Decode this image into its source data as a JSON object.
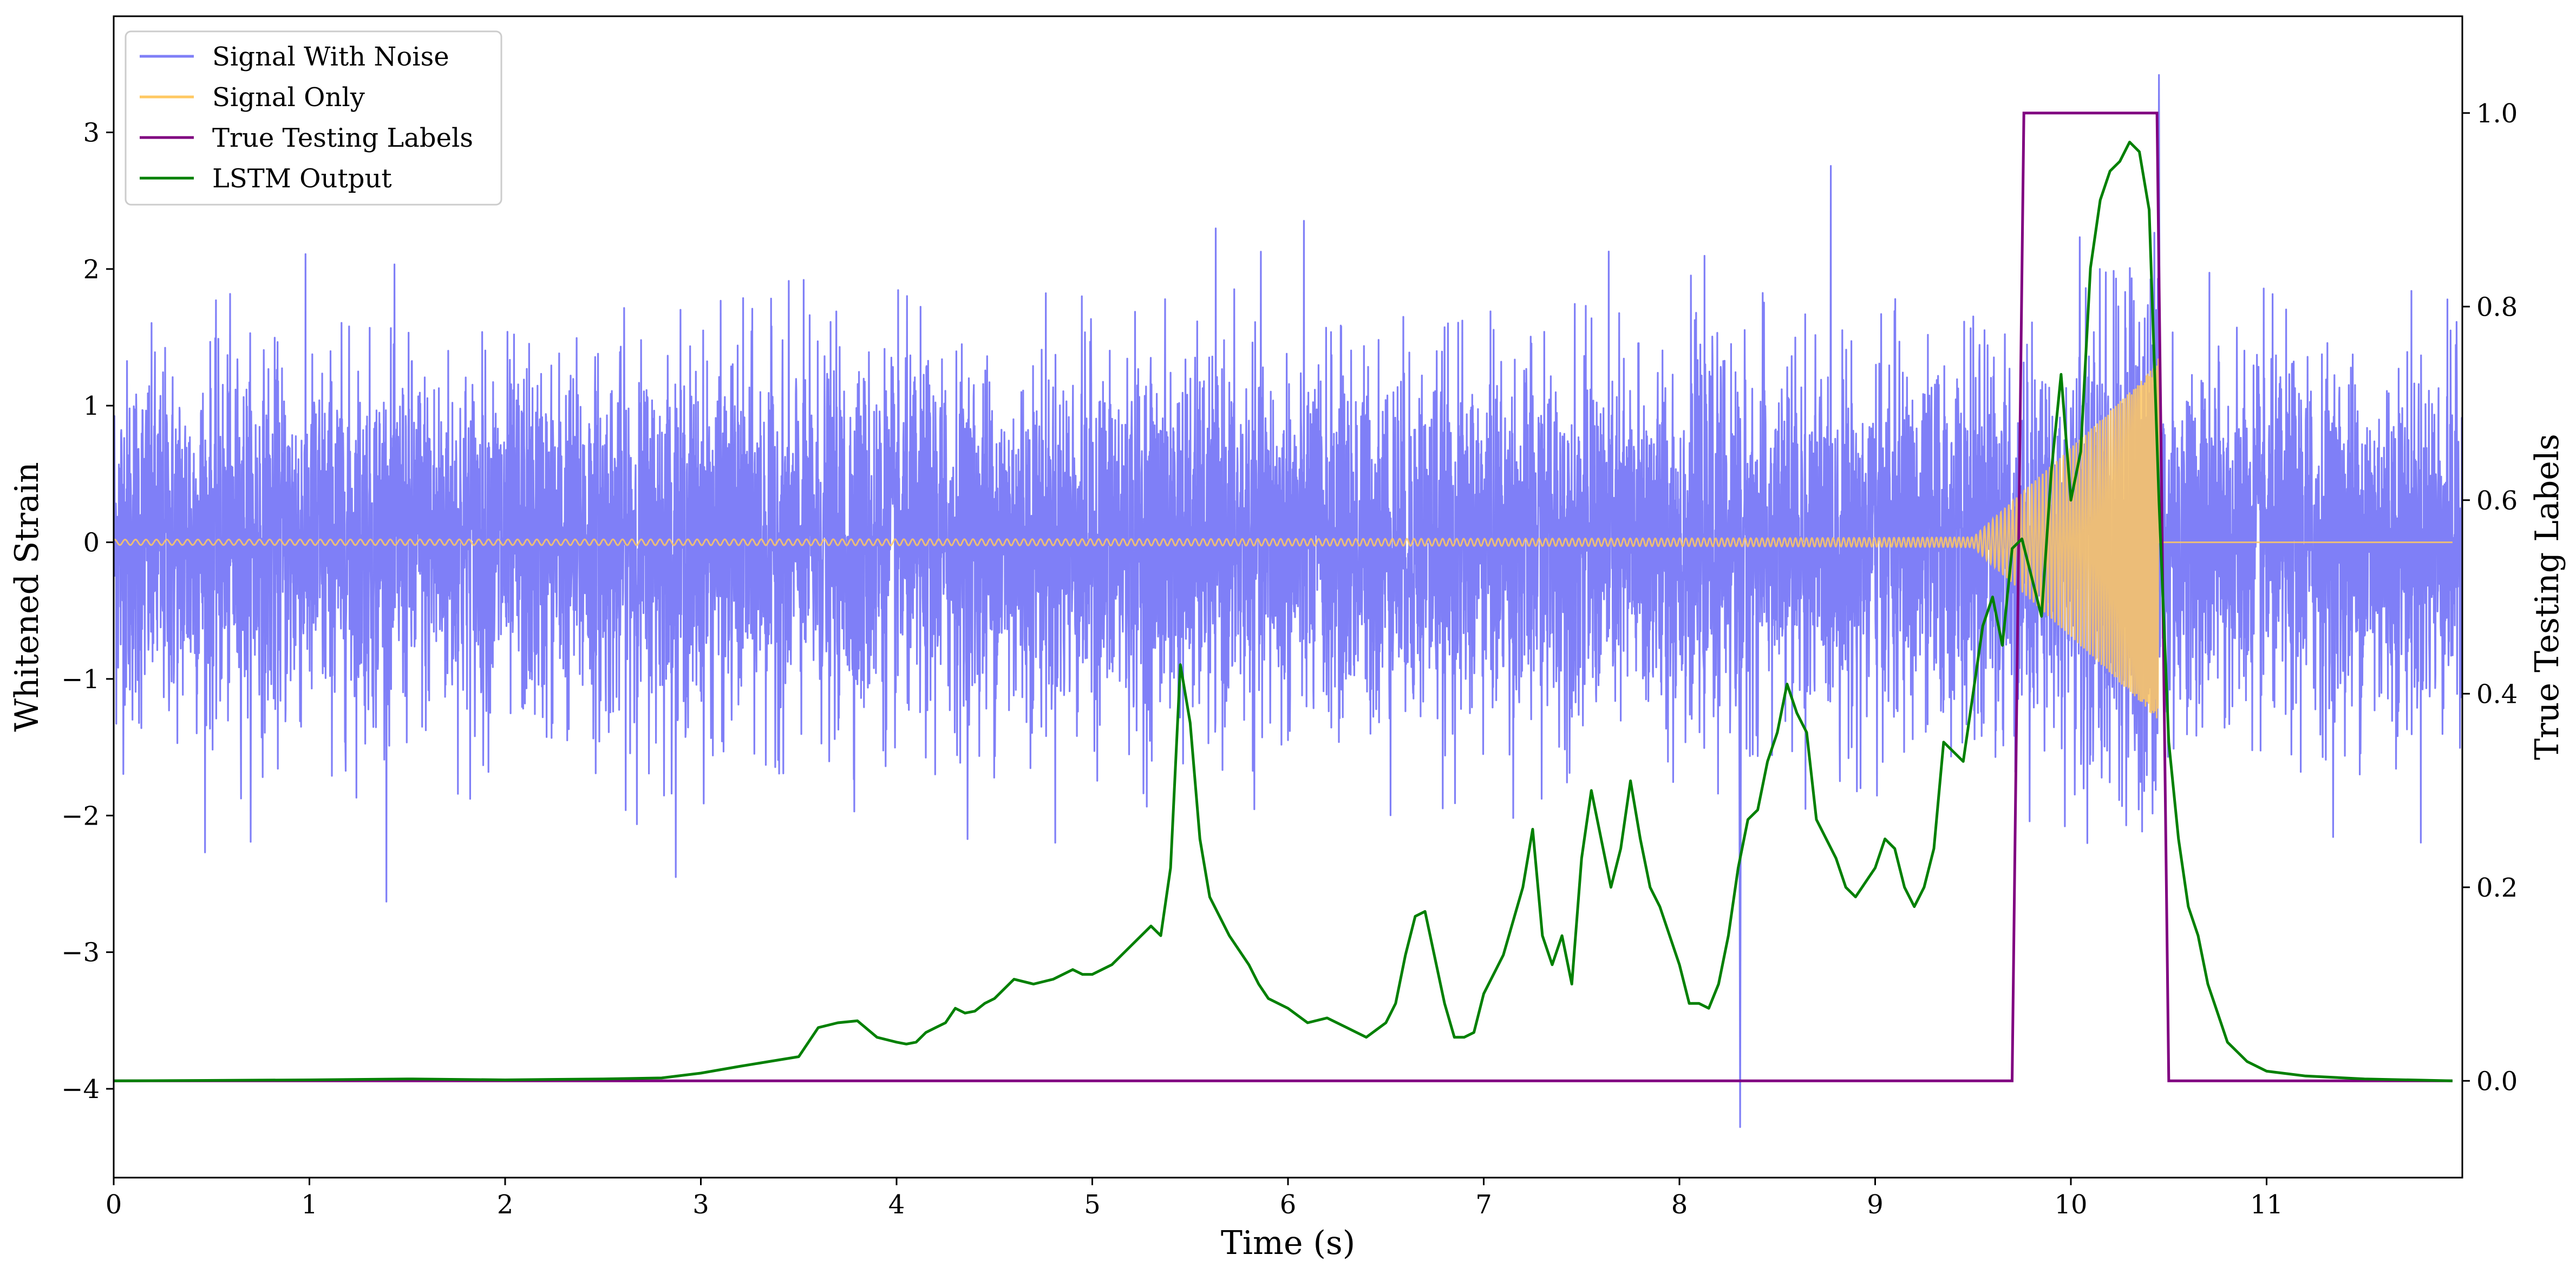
{
  "chart_data": {
    "type": "line",
    "xlabel": "Time (s)",
    "ylabel_left": "Whitened Strain",
    "ylabel_right": "True Testing Labels",
    "xlim": [
      0,
      12
    ],
    "ylim_left": [
      -4.65,
      3.85
    ],
    "ylim_right": [
      -0.1,
      1.1
    ],
    "x_ticks": [
      0,
      1,
      2,
      3,
      4,
      5,
      6,
      7,
      8,
      9,
      10,
      11
    ],
    "y_left_ticks": [
      -4,
      -3,
      -2,
      -1,
      0,
      1,
      2,
      3
    ],
    "y_right_ticks": [
      0.0,
      0.2,
      0.4,
      0.6,
      0.8,
      1.0
    ],
    "grid": false,
    "legend_position": "top-left",
    "colors": {
      "signal_with_noise": "#7f7ff7",
      "signal_only": "#ffc862",
      "true_labels": "#800080",
      "lstm_output": "#008000"
    },
    "series": [
      {
        "name": "Signal With Noise",
        "axis": "left",
        "description_stats": {
          "x_range": [
            0,
            12
          ],
          "std": 0.65,
          "typical_range": [
            -1.5,
            1.5
          ],
          "extremes": [
            {
              "x": 10.45,
              "y": 3.42
            },
            {
              "x": 8.31,
              "y": -4.28
            }
          ]
        }
      },
      {
        "name": "Signal Only",
        "axis": "left",
        "chirp": {
          "start": 0,
          "end": 10.45,
          "amplitude_start": 0.02,
          "amplitude_end": 1.4
        }
      },
      {
        "name": "True Testing Labels",
        "axis": "right",
        "x": [
          0,
          9.7,
          9.76,
          10.44,
          10.5,
          11.95
        ],
        "values": [
          0,
          0,
          1,
          1,
          0,
          0
        ]
      },
      {
        "name": "LSTM Output",
        "axis": "right",
        "x": [
          0,
          1,
          1.5,
          2,
          2.5,
          2.8,
          3.0,
          3.2,
          3.35,
          3.5,
          3.6,
          3.7,
          3.8,
          3.9,
          4.0,
          4.05,
          4.1,
          4.15,
          4.2,
          4.25,
          4.3,
          4.35,
          4.4,
          4.45,
          4.5,
          4.6,
          4.7,
          4.8,
          4.9,
          4.95,
          5.0,
          5.1,
          5.2,
          5.3,
          5.35,
          5.4,
          5.45,
          5.5,
          5.55,
          5.6,
          5.7,
          5.8,
          5.85,
          5.9,
          6.0,
          6.1,
          6.2,
          6.3,
          6.4,
          6.5,
          6.55,
          6.6,
          6.65,
          6.7,
          6.8,
          6.85,
          6.9,
          6.95,
          7.0,
          7.1,
          7.2,
          7.25,
          7.3,
          7.35,
          7.4,
          7.45,
          7.5,
          7.55,
          7.6,
          7.65,
          7.7,
          7.75,
          7.8,
          7.85,
          7.9,
          8.0,
          8.05,
          8.1,
          8.15,
          8.2,
          8.25,
          8.3,
          8.35,
          8.4,
          8.45,
          8.5,
          8.55,
          8.6,
          8.65,
          8.7,
          8.75,
          8.8,
          8.85,
          8.9,
          9.0,
          9.05,
          9.1,
          9.15,
          9.2,
          9.25,
          9.3,
          9.35,
          9.4,
          9.45,
          9.5,
          9.55,
          9.6,
          9.65,
          9.7,
          9.75,
          9.8,
          9.85,
          9.9,
          9.95,
          10.0,
          10.05,
          10.1,
          10.15,
          10.2,
          10.25,
          10.3,
          10.35,
          10.4,
          10.45,
          10.5,
          10.55,
          10.6,
          10.65,
          10.7,
          10.75,
          10.8,
          10.85,
          10.9,
          11.0,
          11.2,
          11.5,
          11.95
        ],
        "values": [
          0.0,
          0.001,
          0.002,
          0.001,
          0.002,
          0.003,
          0.008,
          0.015,
          0.02,
          0.025,
          0.055,
          0.06,
          0.062,
          0.045,
          0.04,
          0.038,
          0.04,
          0.05,
          0.055,
          0.06,
          0.075,
          0.07,
          0.072,
          0.08,
          0.085,
          0.105,
          0.1,
          0.105,
          0.115,
          0.11,
          0.11,
          0.12,
          0.14,
          0.16,
          0.15,
          0.22,
          0.43,
          0.37,
          0.25,
          0.19,
          0.15,
          0.12,
          0.1,
          0.085,
          0.075,
          0.06,
          0.065,
          0.055,
          0.045,
          0.06,
          0.08,
          0.13,
          0.17,
          0.175,
          0.08,
          0.045,
          0.045,
          0.05,
          0.09,
          0.13,
          0.2,
          0.26,
          0.15,
          0.12,
          0.15,
          0.1,
          0.23,
          0.3,
          0.25,
          0.2,
          0.24,
          0.31,
          0.25,
          0.2,
          0.18,
          0.12,
          0.08,
          0.08,
          0.075,
          0.1,
          0.15,
          0.22,
          0.27,
          0.28,
          0.33,
          0.36,
          0.41,
          0.38,
          0.36,
          0.27,
          0.25,
          0.23,
          0.2,
          0.19,
          0.22,
          0.25,
          0.24,
          0.2,
          0.18,
          0.2,
          0.24,
          0.35,
          0.34,
          0.33,
          0.4,
          0.47,
          0.5,
          0.45,
          0.55,
          0.56,
          0.52,
          0.48,
          0.63,
          0.73,
          0.6,
          0.65,
          0.84,
          0.91,
          0.94,
          0.95,
          0.97,
          0.96,
          0.9,
          0.6,
          0.35,
          0.25,
          0.18,
          0.15,
          0.1,
          0.07,
          0.04,
          0.03,
          0.02,
          0.01,
          0.005,
          0.002,
          0.0
        ]
      }
    ]
  }
}
